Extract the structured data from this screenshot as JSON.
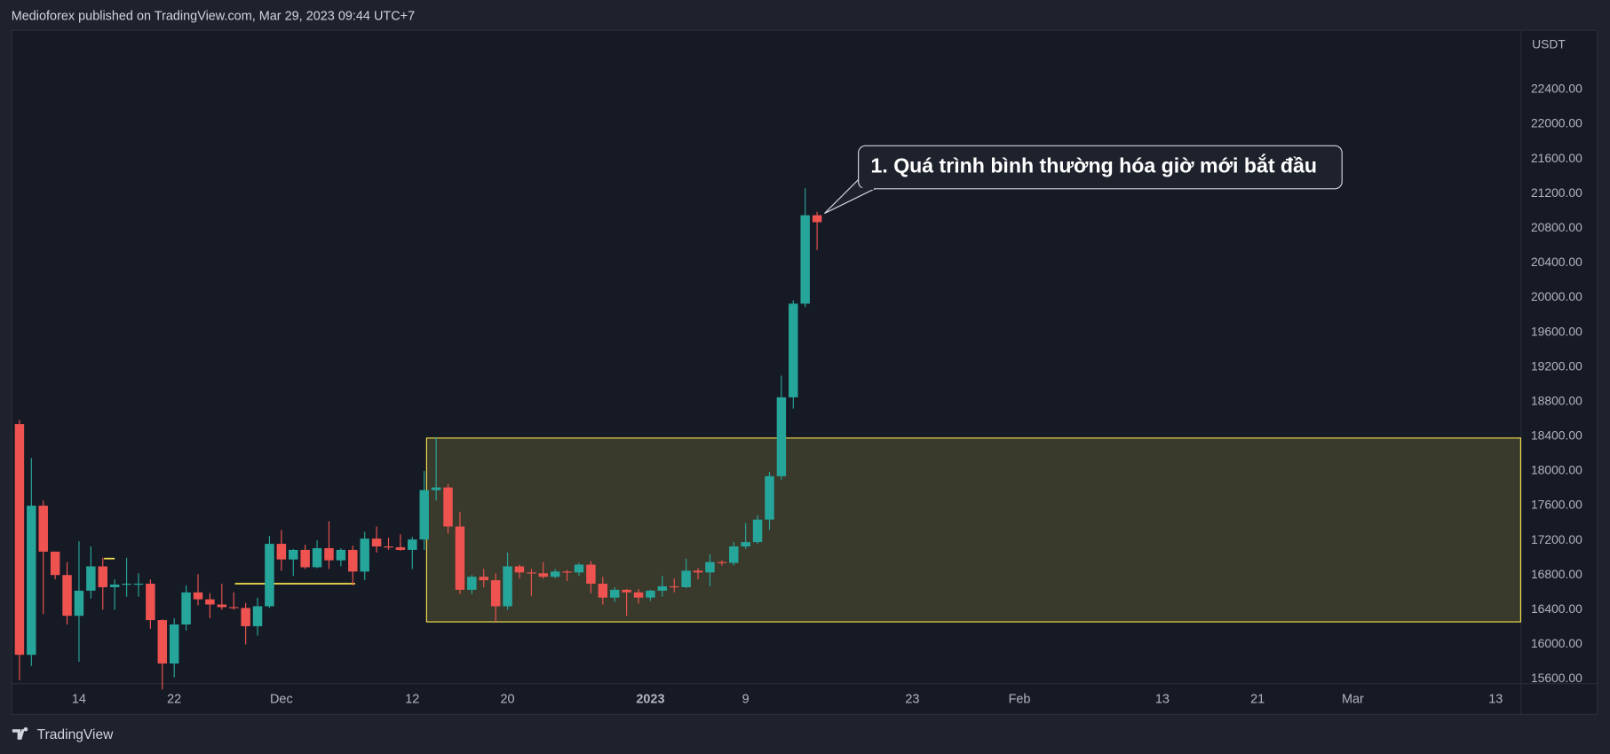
{
  "header": "Medioforex published on TradingView.com, Mar 29, 2023 09:44 UTC+7",
  "footer": "TradingView",
  "chart_data": {
    "type": "candlestick",
    "currency": "USDT",
    "annotation": "1. Quá trình bình thường hóa giờ mới bắt đầu",
    "up_color": "#26a69a",
    "down_color": "#ef5350",
    "grid": false,
    "x": [
      0,
      1,
      2,
      3,
      4,
      5,
      6,
      7,
      8,
      9,
      10,
      11,
      12,
      13,
      14,
      15,
      16,
      17,
      18,
      19,
      20,
      21,
      22,
      23,
      24,
      25,
      26,
      27,
      28,
      29,
      30,
      31,
      32,
      33,
      34,
      35,
      36,
      37,
      38,
      39,
      40,
      41,
      42,
      43,
      44,
      45,
      46,
      47,
      48,
      49,
      50,
      51,
      52,
      53,
      54,
      55,
      56,
      57,
      58,
      59,
      60,
      61,
      62,
      63,
      64,
      65,
      66,
      67
    ],
    "open": [
      18541,
      15880,
      17600,
      17070,
      16800,
      16330,
      16620,
      16900,
      16660,
      16690,
      16700,
      16700,
      16280,
      15780,
      16230,
      16600,
      16520,
      16460,
      16430,
      16420,
      16210,
      16440,
      17160,
      16980,
      17090,
      16890,
      17110,
      16970,
      17090,
      16840,
      17220,
      17130,
      17120,
      17090,
      17210,
      17780,
      17810,
      17360,
      16630,
      16780,
      16740,
      16440,
      16900,
      16830,
      16820,
      16780,
      16840,
      16830,
      16920,
      16700,
      16540,
      16630,
      16600,
      16540,
      16620,
      16670,
      16660,
      16850,
      16830,
      16950,
      16940,
      17130,
      17180,
      17440,
      17940,
      18850,
      19930,
      20950
    ],
    "high": [
      18590,
      18150,
      17660,
      17070,
      16950,
      17190,
      17130,
      17000,
      16750,
      17000,
      16820,
      16750,
      16290,
      16300,
      16680,
      16810,
      16590,
      16700,
      16600,
      16480,
      16540,
      17250,
      17320,
      17100,
      17150,
      17200,
      17420,
      17110,
      17140,
      17300,
      17360,
      17230,
      17270,
      17240,
      18000,
      18390,
      17850,
      17530,
      16800,
      16870,
      16820,
      17060,
      16920,
      16870,
      16950,
      16870,
      16860,
      16940,
      16960,
      16780,
      16660,
      16640,
      16640,
      16630,
      16790,
      16760,
      16990,
      16880,
      17040,
      16970,
      17180,
      17400,
      17490,
      17990,
      19100,
      19970,
      21260,
      20990
    ],
    "low": [
      15588,
      15750,
      16350,
      16750,
      16230,
      15800,
      16530,
      16400,
      16400,
      16550,
      16550,
      16180,
      15480,
      15620,
      16160,
      16450,
      16300,
      16400,
      16400,
      16000,
      16100,
      16420,
      16850,
      16790,
      16870,
      16880,
      16870,
      16900,
      16680,
      16740,
      17060,
      17090,
      17080,
      16870,
      17090,
      17660,
      17280,
      16580,
      16580,
      16660,
      16260,
      16400,
      16760,
      16560,
      16760,
      16760,
      16730,
      16790,
      16590,
      16460,
      16490,
      16330,
      16470,
      16500,
      16550,
      16600,
      16650,
      16750,
      16670,
      16910,
      16910,
      17100,
      17160,
      17320,
      17900,
      18720,
      19890,
      20550
    ],
    "close": [
      15880,
      17600,
      17070,
      16800,
      16330,
      16620,
      16900,
      16660,
      16690,
      16700,
      16700,
      16280,
      15780,
      16230,
      16600,
      16520,
      16460,
      16430,
      16420,
      16210,
      16440,
      17160,
      16980,
      17090,
      16890,
      17110,
      16970,
      17090,
      16840,
      17220,
      17130,
      17120,
      17090,
      17210,
      17780,
      17810,
      17360,
      16630,
      16780,
      16740,
      16440,
      16900,
      16830,
      16820,
      16780,
      16840,
      16830,
      16920,
      16700,
      16540,
      16630,
      16600,
      16540,
      16620,
      16670,
      16660,
      16850,
      16830,
      16950,
      16940,
      17130,
      17180,
      17440,
      17940,
      18850,
      19930,
      20950,
      20870
    ],
    "zone": {
      "top": 18380,
      "bottom": 16260,
      "x_start": 34.2
    },
    "levels": [
      {
        "value": 16990,
        "x_start": 7.1,
        "x_end": 8.0
      },
      {
        "value": 16700,
        "x_start": 18.1,
        "x_end": 28.2
      }
    ],
    "level_color": "#f5e04e",
    "xlim": [
      -0.6,
      126.1
    ],
    "xticks": [
      {
        "value": 5,
        "label": "14"
      },
      {
        "value": 13,
        "label": "22"
      },
      {
        "value": 22,
        "label": "Dec"
      },
      {
        "value": 33,
        "label": "12"
      },
      {
        "value": 41,
        "label": "20"
      },
      {
        "value": 53,
        "label": "2023"
      },
      {
        "value": 61,
        "label": "9"
      },
      {
        "value": 75,
        "label": "23"
      },
      {
        "value": 84,
        "label": "Feb"
      },
      {
        "value": 96,
        "label": "13"
      },
      {
        "value": 104,
        "label": "21"
      },
      {
        "value": 112,
        "label": "Mar"
      },
      {
        "value": 124,
        "label": "13"
      }
    ],
    "ylim": [
      15553,
      23077
    ],
    "yticks": [
      {
        "value": 15600,
        "label": "15600.00"
      },
      {
        "value": 16000,
        "label": "16000.00"
      },
      {
        "value": 16400,
        "label": "16400.00"
      },
      {
        "value": 16800,
        "label": "16800.00"
      },
      {
        "value": 17200,
        "label": "17200.00"
      },
      {
        "value": 17600,
        "label": "17600.00"
      },
      {
        "value": 18000,
        "label": "18000.00"
      },
      {
        "value": 18400,
        "label": "18400.00"
      },
      {
        "value": 18800,
        "label": "18800.00"
      },
      {
        "value": 19200,
        "label": "19200.00"
      },
      {
        "value": 19600,
        "label": "19600.00"
      },
      {
        "value": 20000,
        "label": "20000.00"
      },
      {
        "value": 20400,
        "label": "20400.00"
      },
      {
        "value": 20800,
        "label": "20800.00"
      },
      {
        "value": 21200,
        "label": "21200.00"
      },
      {
        "value": 21600,
        "label": "21600.00"
      },
      {
        "value": 22000,
        "label": "22000.00"
      },
      {
        "value": 22400,
        "label": "22400.00"
      }
    ]
  }
}
